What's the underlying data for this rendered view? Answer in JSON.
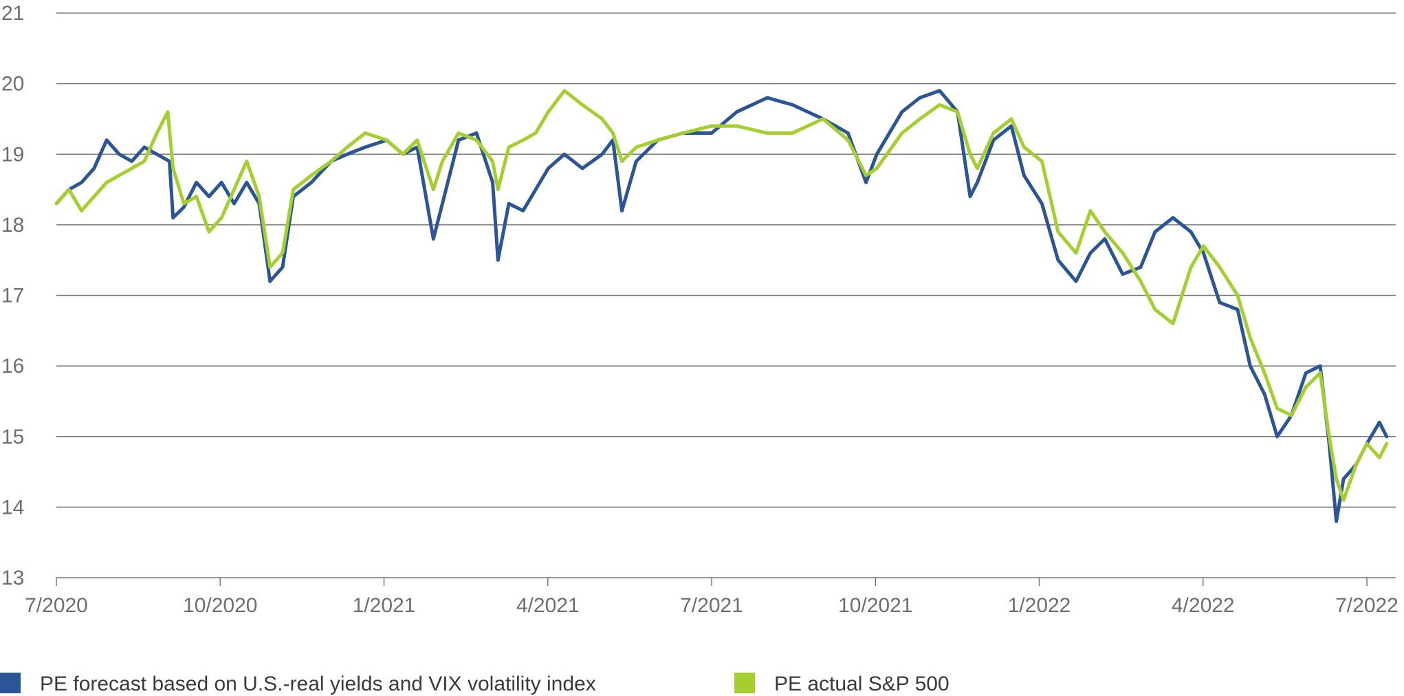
{
  "chart_data": {
    "type": "line",
    "title": "",
    "xlabel": "",
    "ylabel": "",
    "ylim": [
      13,
      21
    ],
    "yticks": [
      13,
      14,
      15,
      16,
      17,
      18,
      19,
      20,
      21
    ],
    "xticks": [
      "7/2020",
      "10/2020",
      "1/2021",
      "4/2021",
      "7/2021",
      "10/2021",
      "1/2022",
      "4/2022",
      "7/2022"
    ],
    "xrange": [
      "2020-07-01",
      "2022-07-01"
    ],
    "grid": "horizontal",
    "legend_position": "bottom",
    "series": [
      {
        "name": "PE forecast based on U.S.-real yields and VIX volatility index",
        "color": "#2b5597",
        "points": [
          [
            "2020-07-01",
            18.3
          ],
          [
            "2020-07-08",
            18.5
          ],
          [
            "2020-07-15",
            18.6
          ],
          [
            "2020-07-22",
            18.8
          ],
          [
            "2020-07-29",
            19.2
          ],
          [
            "2020-08-05",
            19.0
          ],
          [
            "2020-08-12",
            18.9
          ],
          [
            "2020-08-19",
            19.1
          ],
          [
            "2020-08-26",
            19.0
          ],
          [
            "2020-09-02",
            18.9
          ],
          [
            "2020-09-04",
            18.1
          ],
          [
            "2020-09-10",
            18.25
          ],
          [
            "2020-09-17",
            18.6
          ],
          [
            "2020-09-24",
            18.4
          ],
          [
            "2020-10-01",
            18.6
          ],
          [
            "2020-10-08",
            18.3
          ],
          [
            "2020-10-15",
            18.6
          ],
          [
            "2020-10-22",
            18.3
          ],
          [
            "2020-10-28",
            17.2
          ],
          [
            "2020-11-04",
            17.4
          ],
          [
            "2020-11-10",
            18.4
          ],
          [
            "2020-11-20",
            18.6
          ],
          [
            "2020-12-01",
            18.9
          ],
          [
            "2020-12-10",
            19.0
          ],
          [
            "2020-12-20",
            19.1
          ],
          [
            "2021-01-01",
            19.2
          ],
          [
            "2021-01-10",
            19.0
          ],
          [
            "2021-01-18",
            19.1
          ],
          [
            "2021-01-27",
            17.8
          ],
          [
            "2021-02-01",
            18.3
          ],
          [
            "2021-02-10",
            19.2
          ],
          [
            "2021-02-20",
            19.3
          ],
          [
            "2021-03-01",
            18.6
          ],
          [
            "2021-03-04",
            17.5
          ],
          [
            "2021-03-10",
            18.3
          ],
          [
            "2021-03-18",
            18.2
          ],
          [
            "2021-03-25",
            18.5
          ],
          [
            "2021-04-01",
            18.8
          ],
          [
            "2021-04-10",
            19.0
          ],
          [
            "2021-04-20",
            18.8
          ],
          [
            "2021-05-01",
            19.0
          ],
          [
            "2021-05-07",
            19.2
          ],
          [
            "2021-05-12",
            18.2
          ],
          [
            "2021-05-20",
            18.9
          ],
          [
            "2021-06-01",
            19.2
          ],
          [
            "2021-06-15",
            19.3
          ],
          [
            "2021-07-01",
            19.3
          ],
          [
            "2021-07-15",
            19.6
          ],
          [
            "2021-08-01",
            19.8
          ],
          [
            "2021-08-15",
            19.7
          ],
          [
            "2021-09-01",
            19.5
          ],
          [
            "2021-09-15",
            19.3
          ],
          [
            "2021-09-25",
            18.6
          ],
          [
            "2021-10-01",
            19.0
          ],
          [
            "2021-10-15",
            19.6
          ],
          [
            "2021-10-25",
            19.8
          ],
          [
            "2021-11-05",
            19.9
          ],
          [
            "2021-11-15",
            19.6
          ],
          [
            "2021-11-22",
            18.4
          ],
          [
            "2021-11-26",
            18.6
          ],
          [
            "2021-12-05",
            19.2
          ],
          [
            "2021-12-15",
            19.4
          ],
          [
            "2021-12-22",
            18.7
          ],
          [
            "2022-01-01",
            18.3
          ],
          [
            "2022-01-10",
            17.5
          ],
          [
            "2022-01-20",
            17.2
          ],
          [
            "2022-01-28",
            17.6
          ],
          [
            "2022-02-05",
            17.8
          ],
          [
            "2022-02-15",
            17.3
          ],
          [
            "2022-02-25",
            17.4
          ],
          [
            "2022-03-05",
            17.9
          ],
          [
            "2022-03-15",
            18.1
          ],
          [
            "2022-03-25",
            17.9
          ],
          [
            "2022-04-01",
            17.6
          ],
          [
            "2022-04-10",
            16.9
          ],
          [
            "2022-04-20",
            16.8
          ],
          [
            "2022-04-27",
            16.0
          ],
          [
            "2022-05-05",
            15.6
          ],
          [
            "2022-05-12",
            15.0
          ],
          [
            "2022-05-20",
            15.3
          ],
          [
            "2022-05-28",
            15.9
          ],
          [
            "2022-06-05",
            16.0
          ],
          [
            "2022-06-10",
            14.9
          ],
          [
            "2022-06-14",
            13.8
          ],
          [
            "2022-06-18",
            14.4
          ],
          [
            "2022-06-25",
            14.6
          ],
          [
            "2022-07-01",
            14.9
          ],
          [
            "2022-07-08",
            15.2
          ],
          [
            "2022-07-12",
            15.0
          ]
        ]
      },
      {
        "name": "PE actual S&P 500",
        "color": "#a5cf2e",
        "points": [
          [
            "2020-07-01",
            18.3
          ],
          [
            "2020-07-08",
            18.5
          ],
          [
            "2020-07-15",
            18.2
          ],
          [
            "2020-07-22",
            18.4
          ],
          [
            "2020-07-29",
            18.6
          ],
          [
            "2020-08-05",
            18.7
          ],
          [
            "2020-08-12",
            18.8
          ],
          [
            "2020-08-19",
            18.9
          ],
          [
            "2020-08-26",
            19.3
          ],
          [
            "2020-09-01",
            19.6
          ],
          [
            "2020-09-04",
            18.8
          ],
          [
            "2020-09-10",
            18.3
          ],
          [
            "2020-09-17",
            18.4
          ],
          [
            "2020-09-24",
            17.9
          ],
          [
            "2020-10-01",
            18.1
          ],
          [
            "2020-10-08",
            18.5
          ],
          [
            "2020-10-15",
            18.9
          ],
          [
            "2020-10-22",
            18.4
          ],
          [
            "2020-10-28",
            17.4
          ],
          [
            "2020-11-04",
            17.6
          ],
          [
            "2020-11-10",
            18.5
          ],
          [
            "2020-11-20",
            18.7
          ],
          [
            "2020-12-01",
            18.9
          ],
          [
            "2020-12-10",
            19.1
          ],
          [
            "2020-12-20",
            19.3
          ],
          [
            "2021-01-01",
            19.2
          ],
          [
            "2021-01-10",
            19.0
          ],
          [
            "2021-01-18",
            19.2
          ],
          [
            "2021-01-27",
            18.5
          ],
          [
            "2021-02-01",
            18.9
          ],
          [
            "2021-02-10",
            19.3
          ],
          [
            "2021-02-20",
            19.2
          ],
          [
            "2021-03-01",
            18.9
          ],
          [
            "2021-03-04",
            18.5
          ],
          [
            "2021-03-10",
            19.1
          ],
          [
            "2021-03-18",
            19.2
          ],
          [
            "2021-03-25",
            19.3
          ],
          [
            "2021-04-01",
            19.6
          ],
          [
            "2021-04-10",
            19.9
          ],
          [
            "2021-04-20",
            19.7
          ],
          [
            "2021-05-01",
            19.5
          ],
          [
            "2021-05-07",
            19.3
          ],
          [
            "2021-05-12",
            18.9
          ],
          [
            "2021-05-20",
            19.1
          ],
          [
            "2021-06-01",
            19.2
          ],
          [
            "2021-06-15",
            19.3
          ],
          [
            "2021-07-01",
            19.4
          ],
          [
            "2021-07-15",
            19.4
          ],
          [
            "2021-08-01",
            19.3
          ],
          [
            "2021-08-15",
            19.3
          ],
          [
            "2021-09-01",
            19.5
          ],
          [
            "2021-09-15",
            19.2
          ],
          [
            "2021-09-25",
            18.7
          ],
          [
            "2021-10-01",
            18.8
          ],
          [
            "2021-10-15",
            19.3
          ],
          [
            "2021-10-25",
            19.5
          ],
          [
            "2021-11-05",
            19.7
          ],
          [
            "2021-11-15",
            19.6
          ],
          [
            "2021-11-22",
            19.0
          ],
          [
            "2021-11-26",
            18.8
          ],
          [
            "2021-12-05",
            19.3
          ],
          [
            "2021-12-15",
            19.5
          ],
          [
            "2021-12-22",
            19.1
          ],
          [
            "2022-01-01",
            18.9
          ],
          [
            "2022-01-10",
            17.9
          ],
          [
            "2022-01-20",
            17.6
          ],
          [
            "2022-01-28",
            18.2
          ],
          [
            "2022-02-05",
            17.9
          ],
          [
            "2022-02-15",
            17.6
          ],
          [
            "2022-02-25",
            17.2
          ],
          [
            "2022-03-05",
            16.8
          ],
          [
            "2022-03-15",
            16.6
          ],
          [
            "2022-03-25",
            17.4
          ],
          [
            "2022-04-01",
            17.7
          ],
          [
            "2022-04-10",
            17.4
          ],
          [
            "2022-04-20",
            17.0
          ],
          [
            "2022-04-27",
            16.4
          ],
          [
            "2022-05-05",
            15.9
          ],
          [
            "2022-05-12",
            15.4
          ],
          [
            "2022-05-20",
            15.3
          ],
          [
            "2022-05-28",
            15.7
          ],
          [
            "2022-06-05",
            15.9
          ],
          [
            "2022-06-10",
            15.0
          ],
          [
            "2022-06-14",
            14.4
          ],
          [
            "2022-06-18",
            14.1
          ],
          [
            "2022-06-25",
            14.6
          ],
          [
            "2022-07-01",
            14.9
          ],
          [
            "2022-07-08",
            14.7
          ],
          [
            "2022-07-12",
            14.9
          ]
        ]
      }
    ]
  }
}
